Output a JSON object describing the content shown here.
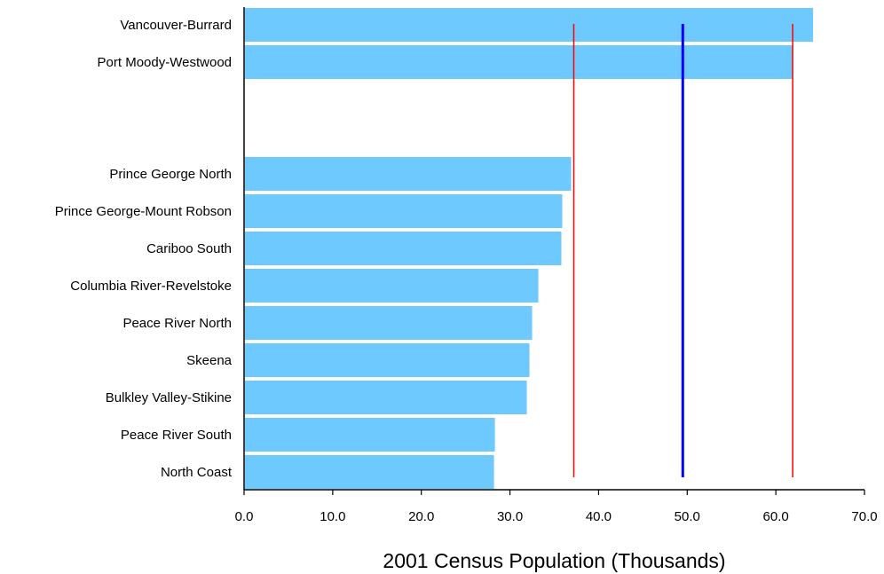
{
  "chart_data": {
    "type": "bar",
    "orientation": "horizontal",
    "title": "",
    "xlabel": "2001 Census Population  (Thousands)",
    "ylabel": "",
    "xlim": [
      0,
      70
    ],
    "x_ticks": [
      0,
      10,
      20,
      30,
      40,
      50,
      60,
      70
    ],
    "x_tick_labels": [
      "0.0",
      "10.0",
      "20.0",
      "30.0",
      "40.0",
      "50.0",
      "60.0",
      "70.0"
    ],
    "grid": false,
    "groups": [
      {
        "categories": [
          "Vancouver-Burrard",
          "Port Moody-Westwood"
        ],
        "values": [
          64.2,
          61.9
        ]
      },
      {
        "categories": [
          "Prince George North",
          "Prince George-Mount Robson",
          "Cariboo South",
          "Columbia River-Revelstoke",
          "Peace River North",
          "Skeena",
          "Bulkley Valley-Stikine",
          "Peace River South",
          "North Coast"
        ],
        "values": [
          36.9,
          35.9,
          35.8,
          33.2,
          32.5,
          32.2,
          31.9,
          28.3,
          28.2
        ]
      }
    ],
    "reference_lines": [
      {
        "value": 37.2,
        "color": "#ff0000",
        "style": "thin"
      },
      {
        "value": 49.5,
        "color": "#0000ff",
        "style": "thick"
      },
      {
        "value": 61.9,
        "color": "#ff0000",
        "style": "thin"
      }
    ],
    "colors": {
      "bar": "#6ec9ff",
      "axis": "#000000"
    }
  }
}
